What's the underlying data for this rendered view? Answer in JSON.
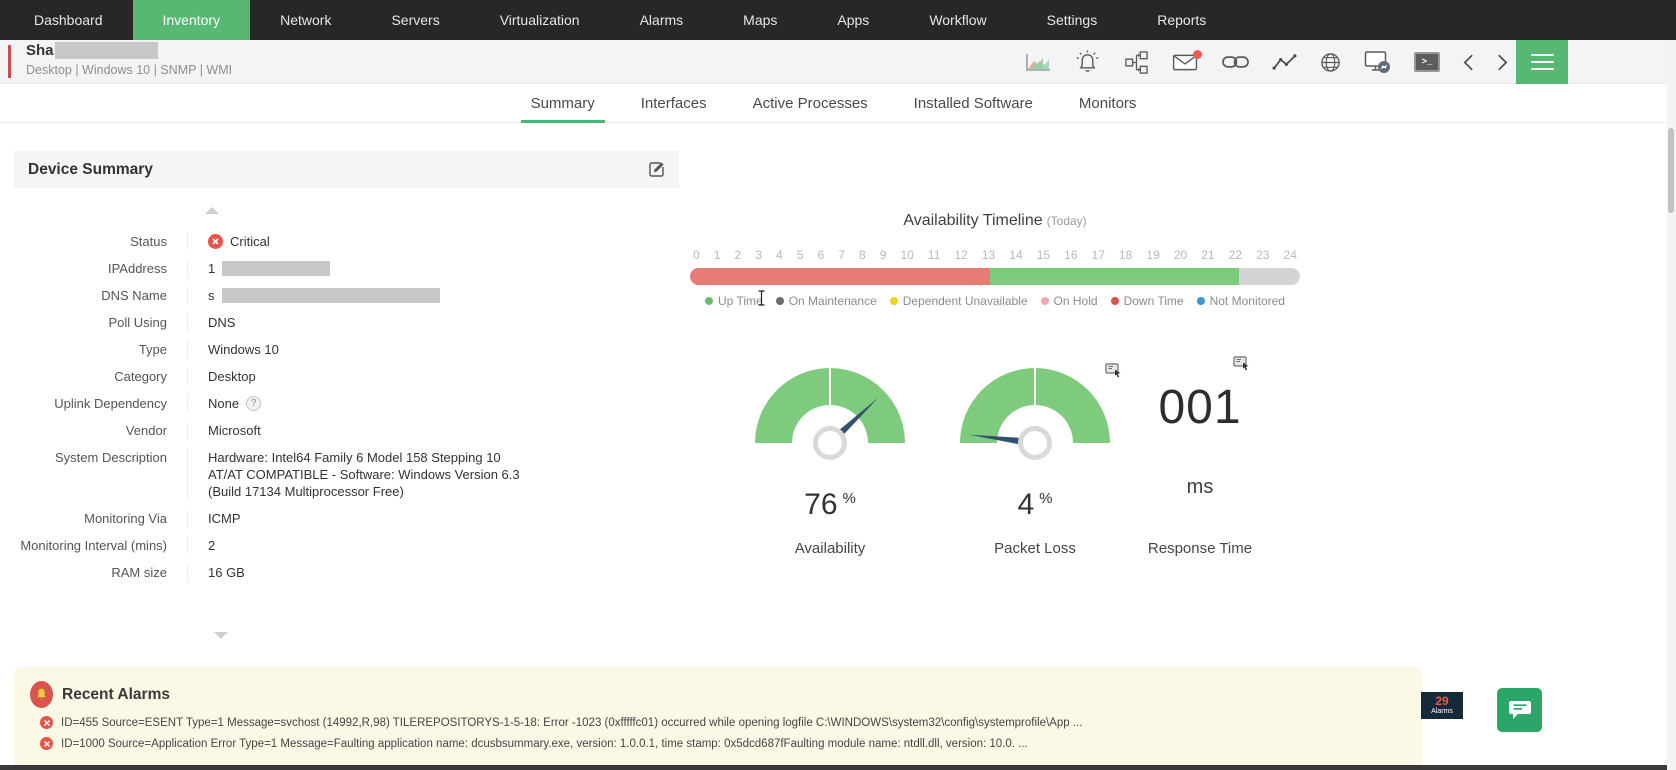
{
  "nav": {
    "items": [
      {
        "label": "Dashboard",
        "active": "false"
      },
      {
        "label": "Inventory",
        "active": "true"
      },
      {
        "label": "Network",
        "active": "false"
      },
      {
        "label": "Servers",
        "active": "false"
      },
      {
        "label": "Virtualization",
        "active": "false"
      },
      {
        "label": "Alarms",
        "active": "false"
      },
      {
        "label": "Maps",
        "active": "false"
      },
      {
        "label": "Apps",
        "active": "false"
      },
      {
        "label": "Workflow",
        "active": "false"
      },
      {
        "label": "Settings",
        "active": "false"
      },
      {
        "label": "Reports",
        "active": "false"
      }
    ]
  },
  "device_header": {
    "name": "Sha",
    "subtitle": "Desktop | Windows 10  | SNMP  | WMI",
    "icons": [
      "area-chart",
      "alarm-bell",
      "topology",
      "mail",
      "link",
      "line-graph",
      "globe",
      "remote-desktop",
      "terminal",
      "chevron-left",
      "chevron-right",
      "menu"
    ]
  },
  "tabs": [
    {
      "label": "Summary",
      "active": "true"
    },
    {
      "label": "Interfaces",
      "active": "false"
    },
    {
      "label": "Active Processes",
      "active": "false"
    },
    {
      "label": "Installed Software",
      "active": "false"
    },
    {
      "label": "Monitors",
      "active": "false"
    }
  ],
  "device_summary": {
    "title": "Device Summary",
    "fields": [
      {
        "label": "Status",
        "value": "Critical",
        "icon": "critical",
        "redacted": "no"
      },
      {
        "label": "IPAddress",
        "value": "1",
        "icon": "none",
        "redacted": "ip"
      },
      {
        "label": "DNS Name",
        "value": "s",
        "icon": "none",
        "redacted": "dns"
      },
      {
        "label": "Poll Using",
        "value": "DNS",
        "icon": "none",
        "redacted": "no"
      },
      {
        "label": "Type",
        "value": "Windows 10",
        "icon": "none",
        "redacted": "no"
      },
      {
        "label": "Category",
        "value": "Desktop",
        "icon": "none",
        "redacted": "no"
      },
      {
        "label": "Uplink Dependency",
        "value": "None",
        "icon": "help",
        "redacted": "no"
      },
      {
        "label": "Vendor",
        "value": "Microsoft",
        "icon": "none",
        "redacted": "no"
      },
      {
        "label": "System Description",
        "value": "Hardware: Intel64 Family 6 Model 158 Stepping 10\nAT/AT COMPATIBLE - Software: Windows Version 6.3\n(Build 17134 Multiprocessor Free)",
        "icon": "none",
        "redacted": "no"
      },
      {
        "label": "Monitoring Via",
        "value": "ICMP",
        "icon": "none",
        "redacted": "no"
      },
      {
        "label": "Monitoring Interval (mins)",
        "value": "2",
        "icon": "none",
        "redacted": "no"
      },
      {
        "label": "RAM size",
        "value": "16 GB",
        "icon": "none",
        "redacted": "no"
      }
    ]
  },
  "chart_data": [
    {
      "type": "timeline-bar",
      "title": "Availability Timeline",
      "subtitle": "(Today)",
      "hours_range": [
        0,
        24
      ],
      "x_ticks": [
        "0",
        "1",
        "2",
        "3",
        "4",
        "5",
        "6",
        "7",
        "8",
        "9",
        "10",
        "11",
        "12",
        "13",
        "14",
        "15",
        "16",
        "17",
        "18",
        "19",
        "20",
        "21",
        "22",
        "23",
        "24"
      ],
      "segments": [
        {
          "status": "Down Time",
          "from_hour": 0,
          "to_hour": 11.8,
          "width_pct": 49.2,
          "color": "#e77c77"
        },
        {
          "status": "Up Time",
          "from_hour": 11.8,
          "to_hour": 21.6,
          "width_pct": 40.8,
          "color": "#7ecb7e"
        },
        {
          "status": "Not Monitored",
          "from_hour": 21.6,
          "to_hour": 24,
          "width_pct": 10,
          "color": "#d4d4d4"
        }
      ],
      "legend": [
        {
          "label": "Up Time",
          "color": "#6abf69"
        },
        {
          "label": "On Maintenance",
          "color": "#6e6e6e"
        },
        {
          "label": "Dependent Unavailable",
          "color": "#efd31f"
        },
        {
          "label": "On Hold",
          "color": "#f2a6b0"
        },
        {
          "label": "Down Time",
          "color": "#d9534f"
        },
        {
          "label": "Not Monitored",
          "color": "#3b97d3"
        }
      ]
    },
    {
      "type": "gauge",
      "label": "Availability",
      "value": "76",
      "unit": "%",
      "needle_deg": 46.8,
      "arc_color": "#7ecb7e"
    },
    {
      "type": "gauge",
      "label": "Packet Loss",
      "value": "4",
      "unit": "%",
      "needle_deg": -82.8,
      "arc_color": "#7ecb7e"
    },
    {
      "type": "big-number",
      "label": "Response Time",
      "value": "001",
      "unit": "ms"
    }
  ],
  "recent_alarms": {
    "title": "Recent Alarms",
    "items": [
      {
        "message": "ID=455 Source=ESENT Type=1 Message=svchost (14992,R,98) TILEREPOSITORYS-1-5-18: Error -1023 (0xfffffc01) occurred while opening logfile C:\\WINDOWS\\system32\\config\\systemprofile\\App ..."
      },
      {
        "message": "ID=1000 Source=Application Error Type=1 Message=Faulting application name: dcusbsummary.exe, version: 1.0.0.1, time stamp: 0x5dcd687fFaulting module name: ntdll.dll, version: 10.0. ..."
      }
    ]
  },
  "footer": {
    "alarm_count": "29",
    "alarm_count_label": "Alarms"
  }
}
